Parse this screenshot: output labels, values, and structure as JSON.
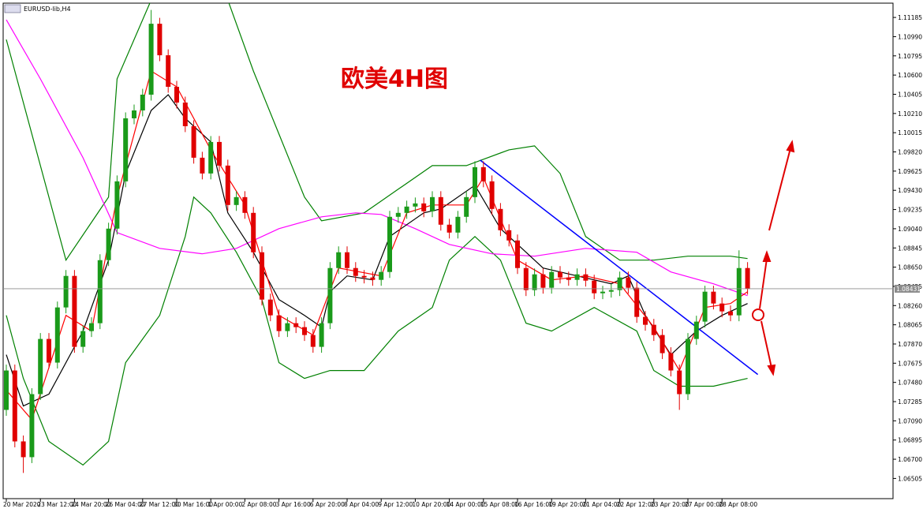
{
  "chart_data": {
    "type": "candlestick",
    "title": "欧美4H图",
    "symbol_label": "EURUSD-lib,H4",
    "ylim": [
      1.063,
      1.1133
    ],
    "yticks": [
      1.06505,
      {
        "value": 1.067,
        "label": "1.06700"
      },
      1.06895,
      {
        "value": 1.0709,
        "label": "1.07090"
      },
      1.07285,
      {
        "value": 1.0748,
        "label": "1.07480"
      },
      1.07675,
      {
        "value": 1.0787,
        "label": "1.07870"
      },
      1.08065,
      {
        "value": 1.0826,
        "label": "1.08260"
      },
      1.08455,
      {
        "value": 1.0865,
        "label": "1.08650"
      },
      1.08845,
      {
        "value": 1.0904,
        "label": "1.09040"
      },
      1.09235,
      {
        "value": 1.0943,
        "label": "1.09430"
      },
      1.09625,
      {
        "value": 1.0982,
        "label": "1.09820"
      },
      1.10015,
      {
        "value": 1.1021,
        "label": "1.10210"
      },
      1.10405,
      {
        "value": 1.106,
        "label": "1.10600"
      },
      1.10795,
      {
        "value": 1.1099,
        "label": "1.10990"
      },
      1.11185
    ],
    "xlim": [
      0,
      104.4
    ],
    "xticks": [
      {
        "value": 0,
        "label": "20 Mar 2020"
      },
      {
        "value": 4,
        "label": "23 Mar 12:00"
      },
      {
        "value": 8,
        "label": "24 Mar 20:00"
      },
      {
        "value": 12,
        "label": "26 Mar 04:00"
      },
      {
        "value": 16,
        "label": "27 Mar 12:00"
      },
      {
        "value": 20,
        "label": "30 Mar 16:00"
      },
      {
        "value": 24,
        "label": "1 Apr 00:00"
      },
      {
        "value": 28,
        "label": "2 Apr 08:00"
      },
      {
        "value": 32,
        "label": "3 Apr 16:00"
      },
      {
        "value": 36,
        "label": "6 Apr 20:00"
      },
      {
        "value": 40,
        "label": "8 Apr 04:00"
      },
      {
        "value": 44,
        "label": "9 Apr 12:00"
      },
      {
        "value": 48,
        "label": "10 Apr 20:00"
      },
      {
        "value": 52,
        "label": "14 Apr 00:00"
      },
      {
        "value": 56,
        "label": "15 Apr 08:00"
      },
      {
        "value": 60,
        "label": "16 Apr 16:00"
      },
      {
        "value": 64,
        "label": "19 Apr 20:00"
      },
      {
        "value": 68,
        "label": "21 Apr 04:00"
      },
      {
        "value": 72,
        "label": "22 Apr 12:00"
      },
      {
        "value": 76,
        "label": "23 Apr 20:00"
      },
      {
        "value": 80,
        "label": "27 Apr 00:00"
      },
      {
        "value": 84,
        "label": "28 Apr 08:00"
      }
    ],
    "up_color": "#1a9a1a",
    "down_color": "#e00000",
    "last_price": 1.08431,
    "open": [
      1.07201,
      1.07601,
      1.06881,
      1.06721,
      1.07361,
      1.07921,
      1.07681,
      1.08241,
      1.08561,
      1.07841,
      1.08001,
      1.08081,
      1.08721,
      1.09041,
      1.09521,
      1.10161,
      1.10241,
      1.10401,
      1.11121,
      1.10801,
      1.10481,
      1.10321,
      1.10081,
      1.09761,
      1.09601,
      1.09921,
      1.09681,
      1.09281,
      1.09361,
      1.09201,
      1.08801,
      1.08321,
      1.08161,
      1.08001,
      1.08081,
      1.08041,
      1.07961,
      1.07841,
      1.08081,
      1.08641,
      1.08801,
      1.08641,
      1.08561,
      1.08545,
      1.08521,
      1.08601,
      1.09161,
      1.09201,
      1.09265,
      1.09297,
      1.09217,
      1.09361,
      1.09081,
      1.09001,
      1.09161,
      1.09361,
      1.09665,
      1.09521,
      1.09241,
      1.09025,
      1.08921,
      1.08641,
      1.08417,
      1.08577,
      1.08441,
      1.08601,
      1.08545,
      1.08521,
      1.08577,
      1.08513,
      1.08385,
      1.08401,
      1.08417,
      1.08545,
      1.08441,
      1.08145,
      1.08065,
      1.07961,
      1.07777,
      1.07601,
      1.07361,
      1.07921,
      1.08097,
      1.08401,
      1.08281,
      1.08201,
      1.08161,
      1.08641
    ],
    "high": [
      1.07661,
      1.07661,
      1.06941,
      1.07421,
      1.07981,
      1.07981,
      1.08301,
      1.08621,
      1.08621,
      1.08061,
      1.08141,
      1.08781,
      1.09101,
      1.09581,
      1.10221,
      1.10301,
      1.10461,
      1.11261,
      1.11181,
      1.10861,
      1.10541,
      1.10381,
      1.10141,
      1.09821,
      1.09981,
      1.09981,
      1.09741,
      1.09421,
      1.09421,
      1.09261,
      1.08861,
      1.08381,
      1.08221,
      1.08141,
      1.08141,
      1.08101,
      1.08021,
      1.08141,
      1.08701,
      1.08861,
      1.08861,
      1.08701,
      1.08621,
      1.08605,
      1.08661,
      1.09221,
      1.09261,
      1.09325,
      1.09357,
      1.09357,
      1.09421,
      1.09421,
      1.09141,
      1.09221,
      1.09421,
      1.09725,
      1.09725,
      1.09581,
      1.09301,
      1.09085,
      1.08981,
      1.08701,
      1.08637,
      1.08637,
      1.08661,
      1.08661,
      1.08605,
      1.08637,
      1.08637,
      1.08573,
      1.08461,
      1.08477,
      1.08605,
      1.08605,
      1.08501,
      1.08205,
      1.08125,
      1.08021,
      1.07837,
      1.07661,
      1.07981,
      1.08157,
      1.08461,
      1.08461,
      1.08341,
      1.08261,
      1.08821,
      1.08701
    ],
    "low": [
      1.07141,
      1.06821,
      1.06561,
      1.06661,
      1.07301,
      1.07621,
      1.07621,
      1.08181,
      1.07781,
      1.07781,
      1.07941,
      1.08021,
      1.08661,
      1.08981,
      1.09461,
      1.10101,
      1.10181,
      1.10341,
      1.10741,
      1.10421,
      1.10261,
      1.10021,
      1.09701,
      1.09541,
      1.09541,
      1.09621,
      1.09221,
      1.09221,
      1.09141,
      1.08741,
      1.08261,
      1.08101,
      1.07941,
      1.07941,
      1.07981,
      1.07901,
      1.07781,
      1.07781,
      1.08021,
      1.08581,
      1.08581,
      1.08501,
      1.08485,
      1.08461,
      1.08461,
      1.08541,
      1.09101,
      1.09141,
      1.09205,
      1.09157,
      1.09157,
      1.09021,
      1.08941,
      1.08941,
      1.09101,
      1.09301,
      1.09461,
      1.09181,
      1.08965,
      1.08861,
      1.08581,
      1.08357,
      1.08357,
      1.08381,
      1.08381,
      1.08485,
      1.08461,
      1.08461,
      1.08453,
      1.08325,
      1.08325,
      1.08341,
      1.08357,
      1.08381,
      1.08085,
      1.08005,
      1.07901,
      1.07717,
      1.07541,
      1.07201,
      1.07301,
      1.07861,
      1.08037,
      1.08221,
      1.08141,
      1.08101,
      1.08101,
      1.08371
    ],
    "close": [
      1.07601,
      1.06881,
      1.06721,
      1.07361,
      1.07921,
      1.07681,
      1.08241,
      1.08561,
      1.07841,
      1.08001,
      1.08081,
      1.08721,
      1.09041,
      1.09521,
      1.10161,
      1.10241,
      1.10401,
      1.11121,
      1.10801,
      1.10481,
      1.10321,
      1.10081,
      1.09761,
      1.09601,
      1.09921,
      1.09681,
      1.09281,
      1.09361,
      1.09201,
      1.08801,
      1.08321,
      1.08161,
      1.08001,
      1.08081,
      1.08041,
      1.07961,
      1.07841,
      1.08081,
      1.08641,
      1.08801,
      1.08641,
      1.08561,
      1.08545,
      1.08521,
      1.08601,
      1.09161,
      1.09201,
      1.09265,
      1.09297,
      1.09217,
      1.09361,
      1.09081,
      1.09001,
      1.09161,
      1.09361,
      1.09665,
      1.09521,
      1.09241,
      1.09025,
      1.08921,
      1.08641,
      1.08417,
      1.08577,
      1.08441,
      1.08601,
      1.08545,
      1.08521,
      1.08577,
      1.08513,
      1.08385,
      1.08401,
      1.08417,
      1.08545,
      1.08441,
      1.08145,
      1.08065,
      1.07961,
      1.07777,
      1.07601,
      1.07361,
      1.07921,
      1.08097,
      1.08401,
      1.08281,
      1.08201,
      1.08161,
      1.08641,
      1.08431
    ],
    "overlays": [
      {
        "color": "#008000",
        "x": [
          0,
          7,
          12,
          13,
          17,
          22,
          26,
          29,
          32,
          35,
          37,
          42,
          46,
          50,
          54,
          59,
          62,
          65,
          68,
          72,
          76,
          80,
          85,
          87
        ],
        "values": [
          1.10961,
          1.08721,
          1.09361,
          1.10561,
          1.11361,
          1.11401,
          1.11361,
          1.10641,
          1.10001,
          1.09361,
          1.09121,
          1.09201,
          1.09441,
          1.09681,
          1.09681,
          1.09841,
          1.09881,
          1.09601,
          1.08961,
          1.08721,
          1.08721,
          1.08761,
          1.08761,
          1.08737
        ]
      },
      {
        "color": "#008000",
        "x": [
          0,
          2,
          5,
          9,
          12,
          14,
          18,
          21,
          22,
          24,
          27,
          30,
          32,
          35,
          38,
          42,
          46,
          50,
          52,
          55,
          58,
          61,
          64,
          69,
          74,
          76,
          79,
          83,
          87
        ],
        "values": [
          1.08161,
          1.07521,
          1.06881,
          1.06641,
          1.06881,
          1.07681,
          1.08161,
          1.08961,
          1.09361,
          1.09201,
          1.08801,
          1.08321,
          1.07681,
          1.07521,
          1.07601,
          1.07601,
          1.08001,
          1.08241,
          1.08721,
          1.08961,
          1.08721,
          1.08081,
          1.08001,
          1.08241,
          1.08001,
          1.07601,
          1.07441,
          1.07441,
          1.07521
        ]
      },
      {
        "color": "#ff00ff",
        "x": [
          0,
          4,
          9,
          13,
          18,
          23,
          27,
          32,
          37,
          41,
          44,
          48,
          52,
          57,
          62,
          68,
          74,
          78,
          83,
          87
        ],
        "values": [
          1.11161,
          1.10561,
          1.09761,
          1.09001,
          1.08841,
          1.08785,
          1.08841,
          1.09041,
          1.09161,
          1.09201,
          1.09185,
          1.09041,
          1.08881,
          1.08785,
          1.08761,
          1.08841,
          1.08801,
          1.08601,
          1.08481,
          1.08361
        ]
      },
      {
        "color": "#000000",
        "x": [
          0,
          2,
          5,
          9,
          12,
          14,
          17,
          19,
          21,
          24,
          26,
          29,
          32,
          35,
          37,
          38,
          40,
          43,
          45,
          49,
          51,
          55,
          58,
          61,
          63,
          67,
          71,
          73,
          75,
          78,
          81,
          84,
          87
        ],
        "values": [
          1.07761,
          1.07241,
          1.07361,
          1.08001,
          1.08721,
          1.09601,
          1.10241,
          1.10401,
          1.10161,
          1.09921,
          1.09201,
          1.08801,
          1.08321,
          1.08161,
          1.08041,
          1.08401,
          1.08561,
          1.08521,
          1.08961,
          1.09201,
          1.09241,
          1.09481,
          1.09041,
          1.08801,
          1.08641,
          1.08561,
          1.08481,
          1.08561,
          1.08161,
          1.07761,
          1.08001,
          1.08161,
          1.08281
        ]
      },
      {
        "color": "#ff0000",
        "x": [
          0,
          3,
          7,
          10,
          13,
          17,
          20,
          24,
          28,
          32,
          36,
          39,
          44,
          47,
          50,
          54,
          56,
          60,
          64,
          68,
          72,
          76,
          79,
          82,
          85,
          87
        ],
        "values": [
          1.07401,
          1.07101,
          1.08161,
          1.08001,
          1.09361,
          1.10641,
          1.10481,
          1.09841,
          1.09281,
          1.08161,
          1.07961,
          1.08641,
          1.08561,
          1.09201,
          1.09281,
          1.09281,
          1.09561,
          1.08721,
          1.08521,
          1.08561,
          1.08481,
          1.08041,
          1.07601,
          1.08241,
          1.08281,
          1.08401
        ]
      },
      {
        "color": "#0000ff",
        "x": [
          55.6,
          88.2
        ],
        "values": [
          1.09737,
          1.07561
        ]
      }
    ]
  }
}
